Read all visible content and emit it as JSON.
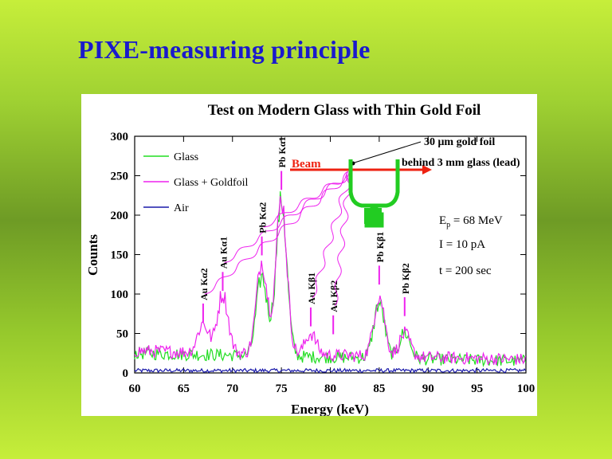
{
  "slide": {
    "title": "PIXE-measuring principle"
  },
  "colors": {
    "background": "#9fd132",
    "title": "#1a1acc",
    "glass": "#22dd22",
    "glass_goldfoil": "#ee22ee",
    "air": "#1a1aaa",
    "beam": "#ee2211",
    "detector": "#22cc22"
  },
  "chart_data": {
    "type": "line",
    "title": "Test on Modern Glass with Thin Gold Foil",
    "xlabel": "Energy (keV)",
    "ylabel": "Counts",
    "xlim": [
      60,
      100
    ],
    "ylim": [
      0,
      300
    ],
    "xticks": [
      60,
      65,
      70,
      75,
      80,
      85,
      90,
      95,
      100
    ],
    "yticks": [
      0,
      50,
      100,
      150,
      200,
      250,
      300
    ],
    "legend_position": "top-left",
    "series": [
      {
        "name": "Glass",
        "color": "#22dd22",
        "peaks": [
          [
            73,
            125
          ],
          [
            75,
            222
          ],
          [
            85,
            95
          ],
          [
            87.6,
            58
          ]
        ],
        "baseline": 25,
        "tail": 15
      },
      {
        "name": "Glass + Goldfoil",
        "color": "#ee22ee",
        "peaks": [
          [
            67,
            65
          ],
          [
            69,
            103
          ],
          [
            73,
            145
          ],
          [
            75,
            226
          ],
          [
            78,
            55
          ],
          [
            85,
            105
          ],
          [
            87.6,
            57
          ]
        ],
        "baseline": 28,
        "tail": 17
      },
      {
        "name": "Air",
        "color": "#1a1aaa",
        "peaks": [],
        "baseline": 3,
        "tail": 3
      }
    ],
    "peak_labels": [
      {
        "label": "Au Kα2",
        "x": 67,
        "y": 60
      },
      {
        "label": "Au Kα1",
        "x": 69,
        "y": 100
      },
      {
        "label": "Pb Kα2",
        "x": 73,
        "y": 145
      },
      {
        "label": "Pb Kα1",
        "x": 75,
        "y": 228
      },
      {
        "label": "Au Kβ1",
        "x": 78,
        "y": 55
      },
      {
        "label": "Au Kβ2",
        "x": 80.3,
        "y": 45
      },
      {
        "label": "Pb Kβ1",
        "x": 85,
        "y": 108
      },
      {
        "label": "Pb Kβ2",
        "x": 87.6,
        "y": 68
      }
    ],
    "annotations": {
      "beam": "Beam",
      "gold_foil": "30 μm gold foil",
      "behind": "behind 3 mm glass (lead)",
      "energy": "E",
      "energy_sub": "p",
      "energy_val": " = 68 MeV",
      "current": "I = 10 pA",
      "time": "t = 200 sec"
    }
  }
}
